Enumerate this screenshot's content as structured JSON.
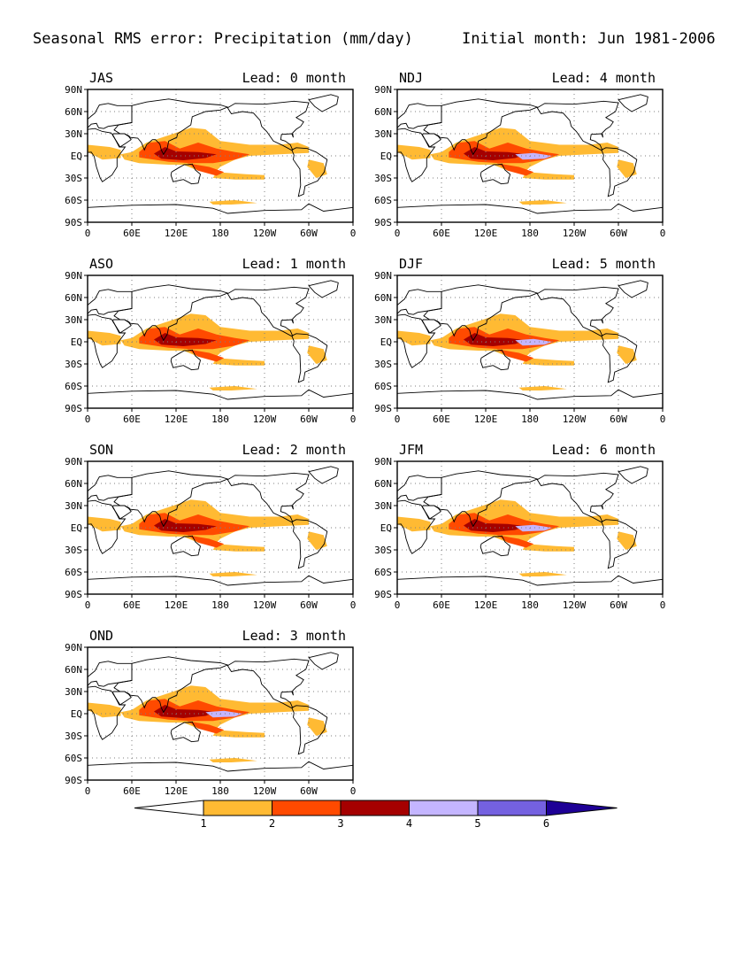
{
  "title": "Seasonal RMS error: Precipitation (mm/day)",
  "subtitle": "Initial month: Jun 1981-2006",
  "lat_labels": [
    "90N",
    "60N",
    "30N",
    "EQ",
    "30S",
    "60S",
    "90S"
  ],
  "lon_labels": [
    "0",
    "60E",
    "120E",
    "180",
    "120W",
    "60W",
    "0"
  ],
  "lead_prefix": "Lead:",
  "lead_suffix": "month",
  "panels": [
    {
      "season": "JAS",
      "lead": 0,
      "level": 1
    },
    {
      "season": "NDJ",
      "lead": 4,
      "level": 3
    },
    {
      "season": "ASO",
      "lead": 1,
      "level": 1
    },
    {
      "season": "DJF",
      "lead": 5,
      "level": 3
    },
    {
      "season": "SON",
      "lead": 2,
      "level": 1
    },
    {
      "season": "JFM",
      "lead": 6,
      "level": 3
    },
    {
      "season": "OND",
      "lead": 3,
      "level": 2
    }
  ],
  "colorbar": {
    "labels": [
      "1",
      "2",
      "3",
      "4",
      "5",
      "6"
    ],
    "colors": [
      "#ffffff",
      "#ffba33",
      "#ff4a00",
      "#a50000",
      "#c4b5ff",
      "#7461e0",
      "#1e0096"
    ]
  },
  "colors": {
    "land_outline": "#000000",
    "grid": "#7f7f7f",
    "contour_1": "#ffba33",
    "contour_2": "#ff4a00",
    "contour_3": "#a50000",
    "contour_4": "#c4b5ff"
  }
}
